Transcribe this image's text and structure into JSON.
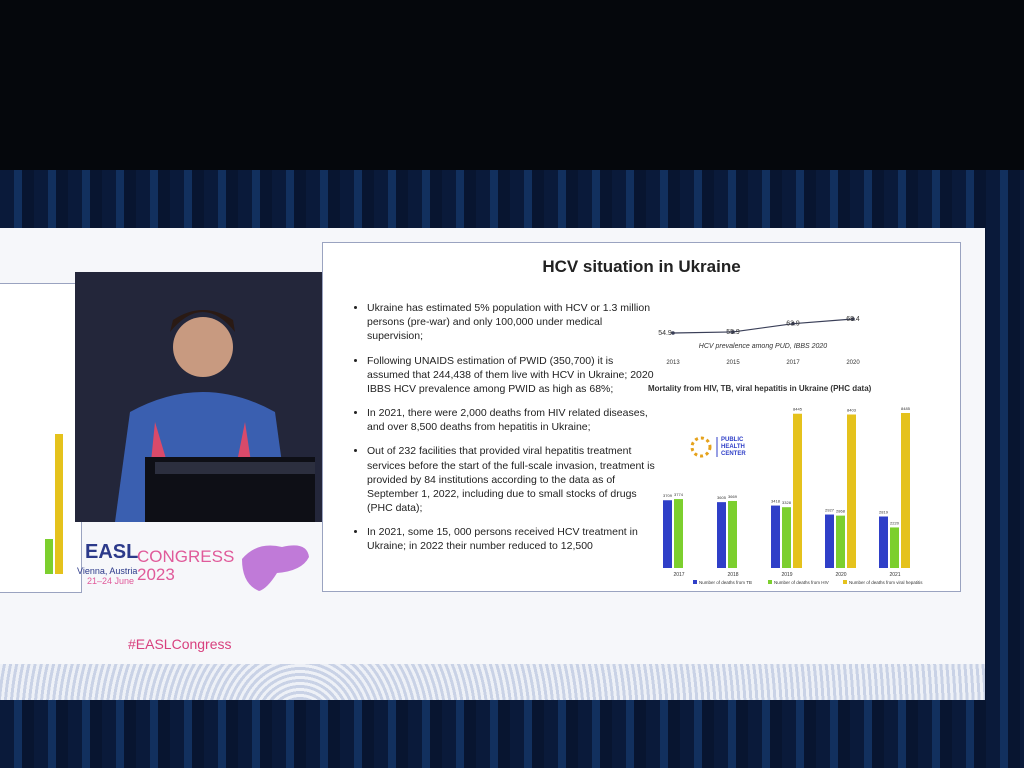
{
  "event": {
    "logo": "EASL",
    "congress": "CONGRESS",
    "year": "2023",
    "location": "Vienna, Austria",
    "dates": "21–24 June",
    "hashtag": "#EASLCongress"
  },
  "slide": {
    "title": "HCV situation in Ukraine",
    "bullets": [
      "Ukraine has estimated 5% population with HCV or 1.3 million persons (pre-war) and only 100,000 under medical supervision;",
      "Following UNAIDS estimation of PWID (350,700) it is assumed that 244,438 of them live with HCV in Ukraine; 2020 IBBS HCV prevalence among PWID as high as 68%;",
      "In 2021, there were 2,000 deaths from HIV related diseases, and over 8,500 deaths from hepatitis in Ukraine;",
      "Out of 232 facilities that provided viral hepatitis treatment services before the start of the full-scale invasion, treatment is provided by 84 institutions according to the data as of September 1, 2022, including due to small stocks of drugs (PHC data);",
      "In 2021, some 15, 000 persons received HCV treatment in Ukraine; in 2022 their number reduced to 12,500"
    ],
    "logo": [
      "PUBLIC",
      "HEALTH",
      "CENTER"
    ]
  },
  "chart_data": [
    {
      "type": "line",
      "title": "HCV prevalence among PUD, IBBS 2020",
      "categories": [
        "2013",
        "2015",
        "2017",
        "2020"
      ],
      "series": [
        {
          "color": "#3a3f58",
          "values": [
            54.9,
            55.9,
            63.9,
            68.4
          ]
        }
      ]
    },
    {
      "type": "bar",
      "title": "Mortality from HIV, TB, viral hepatitis in Ukraine (PHC data)",
      "categories": [
        "2017",
        "2018",
        "2019",
        "2020",
        "2021"
      ],
      "series": [
        {
          "name": "Number of deaths from TB",
          "color": "#2f3fc8",
          "values": [
            3709,
            3605,
            3418,
            2927,
            2819
          ]
        },
        {
          "name": "Number of deaths from HIV",
          "color": "#7ccf2e",
          "values": [
            3774,
            3669,
            3328,
            2868,
            2220
          ]
        },
        {
          "name": "Number of deaths from viral hepatitis",
          "color": "#e5c21c",
          "values": [
            null,
            null,
            8445,
            8403,
            8485
          ]
        }
      ]
    }
  ]
}
